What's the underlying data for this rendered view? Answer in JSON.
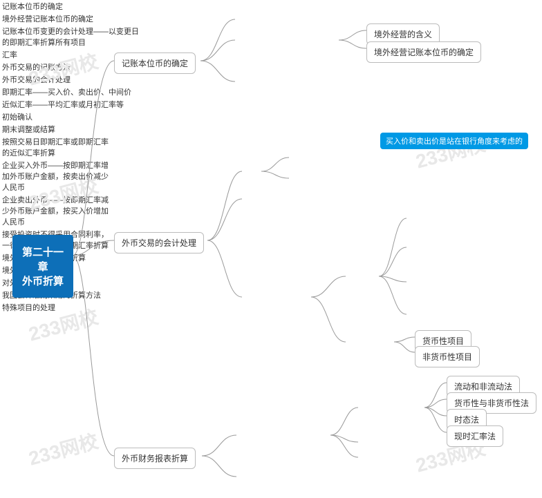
{
  "watermark_text": "233网校",
  "root": {
    "label": "第二十一章\n外币折算"
  },
  "callout": {
    "text": "买入价和卖出价是站在银行角度来考虑的"
  },
  "colors": {
    "root_bg": "#0d6fb8",
    "callout_bg": "#0099e5",
    "border": "#bbbbbb",
    "line": "#999999",
    "text": "#333333",
    "bg": "#ffffff",
    "wm": "#e8e8e8"
  },
  "level1": {
    "a": {
      "label": "记账本位币的确定"
    },
    "b": {
      "label": "外币交易的会计处理"
    },
    "c": {
      "label": "外币财务报表折算"
    }
  },
  "a_children": {
    "a1": "记账本位币的确定",
    "a2": "境外经营记账本位币的确定",
    "a3": "记账本位币变更的会计处理——以变更日\n的即期汇率折算所有项目",
    "a2_1": "境外经营的含义",
    "a2_2": "境外经营记账本位币的确定"
  },
  "b_children": {
    "b1": "汇率",
    "b2": "外币交易的记账方法",
    "b3": "外币交易的会计处理",
    "b1_1": "即期汇率——买入价、卖出价、中间价",
    "b1_2": "近似汇率——平均汇率或月初汇率等",
    "b3_1": "初始确认",
    "b3_2": "期末调整或结算",
    "b3_1_1": "按照交易日即期汇率或即期汇率\n的近似汇率折算",
    "b3_1_2": "企业买入外币——按即期汇率增\n加外币账户金额，按卖出价减少\n人民币",
    "b3_1_3": "企业卖出外币——按即期汇率减\n少外币账户金额，按买入价增加\n人民币",
    "b3_1_4": "接受投资时不得采用合同利率，\n一律按照交易日的即期汇率折算",
    "b3_2_1": "货币性项目",
    "b3_2_2": "非货币性项目"
  },
  "c_children": {
    "c1": "境外经营财务报表的折算",
    "c2": "境外经营的处置",
    "c1_1": "对外币报表的折算",
    "c1_2": "我国会计准则采用的折算方法",
    "c1_3": "特殊项目的处理",
    "c1_1_1": "流动和非流动法",
    "c1_1_2": "货币性与非货币性法",
    "c1_1_3": "时态法",
    "c1_1_4": "现时汇率法"
  }
}
